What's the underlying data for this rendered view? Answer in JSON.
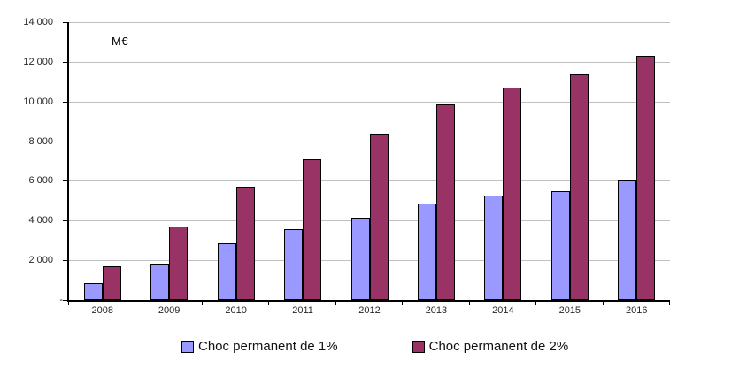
{
  "chart_data": {
    "type": "bar",
    "title": "",
    "unit_label": "M€",
    "categories": [
      "2008",
      "2009",
      "2010",
      "2011",
      "2012",
      "2013",
      "2014",
      "2015",
      "2016"
    ],
    "series": [
      {
        "name": "Choc permanent de 1%",
        "color": "#9999FF",
        "values": [
          850,
          1850,
          2850,
          3550,
          4150,
          4850,
          5250,
          5500,
          6000
        ]
      },
      {
        "name": "Choc permanent de 2%",
        "color": "#993366",
        "values": [
          1700,
          3700,
          5700,
          7100,
          8350,
          9850,
          10700,
          11350,
          12300
        ]
      }
    ],
    "xlabel": "",
    "ylabel": "M€",
    "ylim": [
      0,
      14000
    ],
    "ytick_interval": 2000,
    "ytick_labels": [
      "-",
      "2 000",
      "4 000",
      "6 000",
      "8 000",
      "10 000",
      "12 000",
      "14 000"
    ],
    "grid": true,
    "legend_position": "bottom",
    "colors": {
      "gridline": "#BFBFBF",
      "axis": "#000000",
      "bar_border": "#000000",
      "tick_text": "#262626",
      "background": "#FFFFFF"
    }
  }
}
